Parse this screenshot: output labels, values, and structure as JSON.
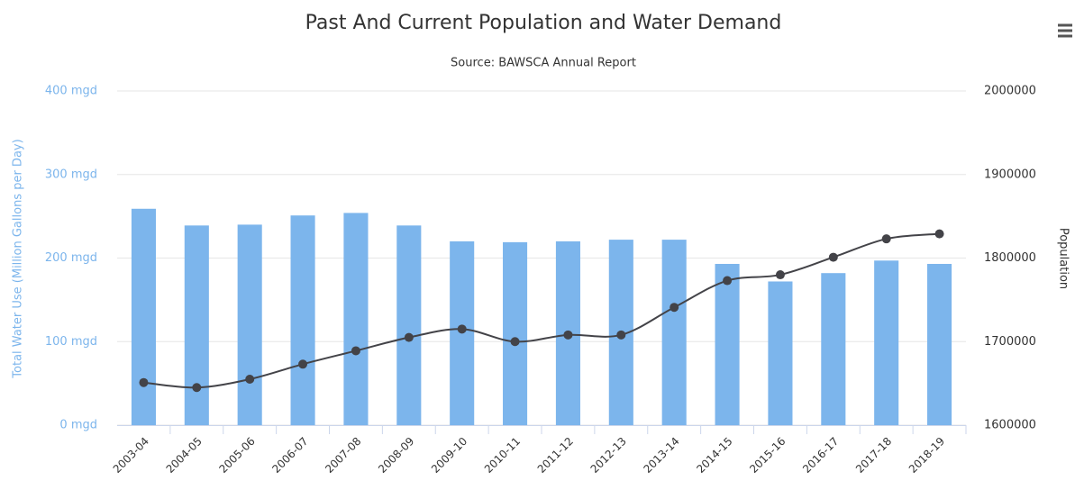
{
  "chart_data": {
    "type": "combo",
    "title": "Past And Current Population and Water Demand",
    "subtitle": "Source: BAWSCA Annual Report",
    "y_label": "Total Water Use (Million Gallons per Day)",
    "y2_label": "Population",
    "categories": [
      "2003-04",
      "2004-05",
      "2005-06",
      "2006-07",
      "2007-08",
      "2008-09",
      "2009-10",
      "2010-11",
      "2011-12",
      "2012-13",
      "2013-14",
      "2014-15",
      "2015-16",
      "2016-17",
      "2017-18",
      "2018-19"
    ],
    "series": [
      {
        "type": "bar",
        "color": "#7cb5ec",
        "values": [
          259,
          239,
          240,
          251,
          254,
          239,
          220,
          219,
          220,
          222,
          222,
          193,
          172,
          182,
          197,
          193
        ]
      },
      {
        "type": "line",
        "color": "#434348",
        "axis": "y2",
        "values": [
          1651000,
          1645000,
          1655000,
          1673000,
          1689000,
          1705000,
          1715000,
          1700000,
          1708000,
          1708000,
          1741000,
          1773000,
          1780000,
          1801000,
          1823000,
          1829000
        ]
      }
    ],
    "ylim": [
      0,
      400
    ],
    "yticks": [
      {
        "value": 0,
        "label": "0 mgd"
      },
      {
        "value": 100,
        "label": "100 mgd"
      },
      {
        "value": 200,
        "label": "200 mgd"
      },
      {
        "value": 300,
        "label": "300 mgd"
      },
      {
        "value": 400,
        "label": "400 mgd"
      }
    ],
    "y2lim": [
      1600000,
      2000000
    ],
    "y2ticks": [
      1600000,
      1700000,
      1800000,
      1900000,
      2000000
    ],
    "grid": true
  }
}
